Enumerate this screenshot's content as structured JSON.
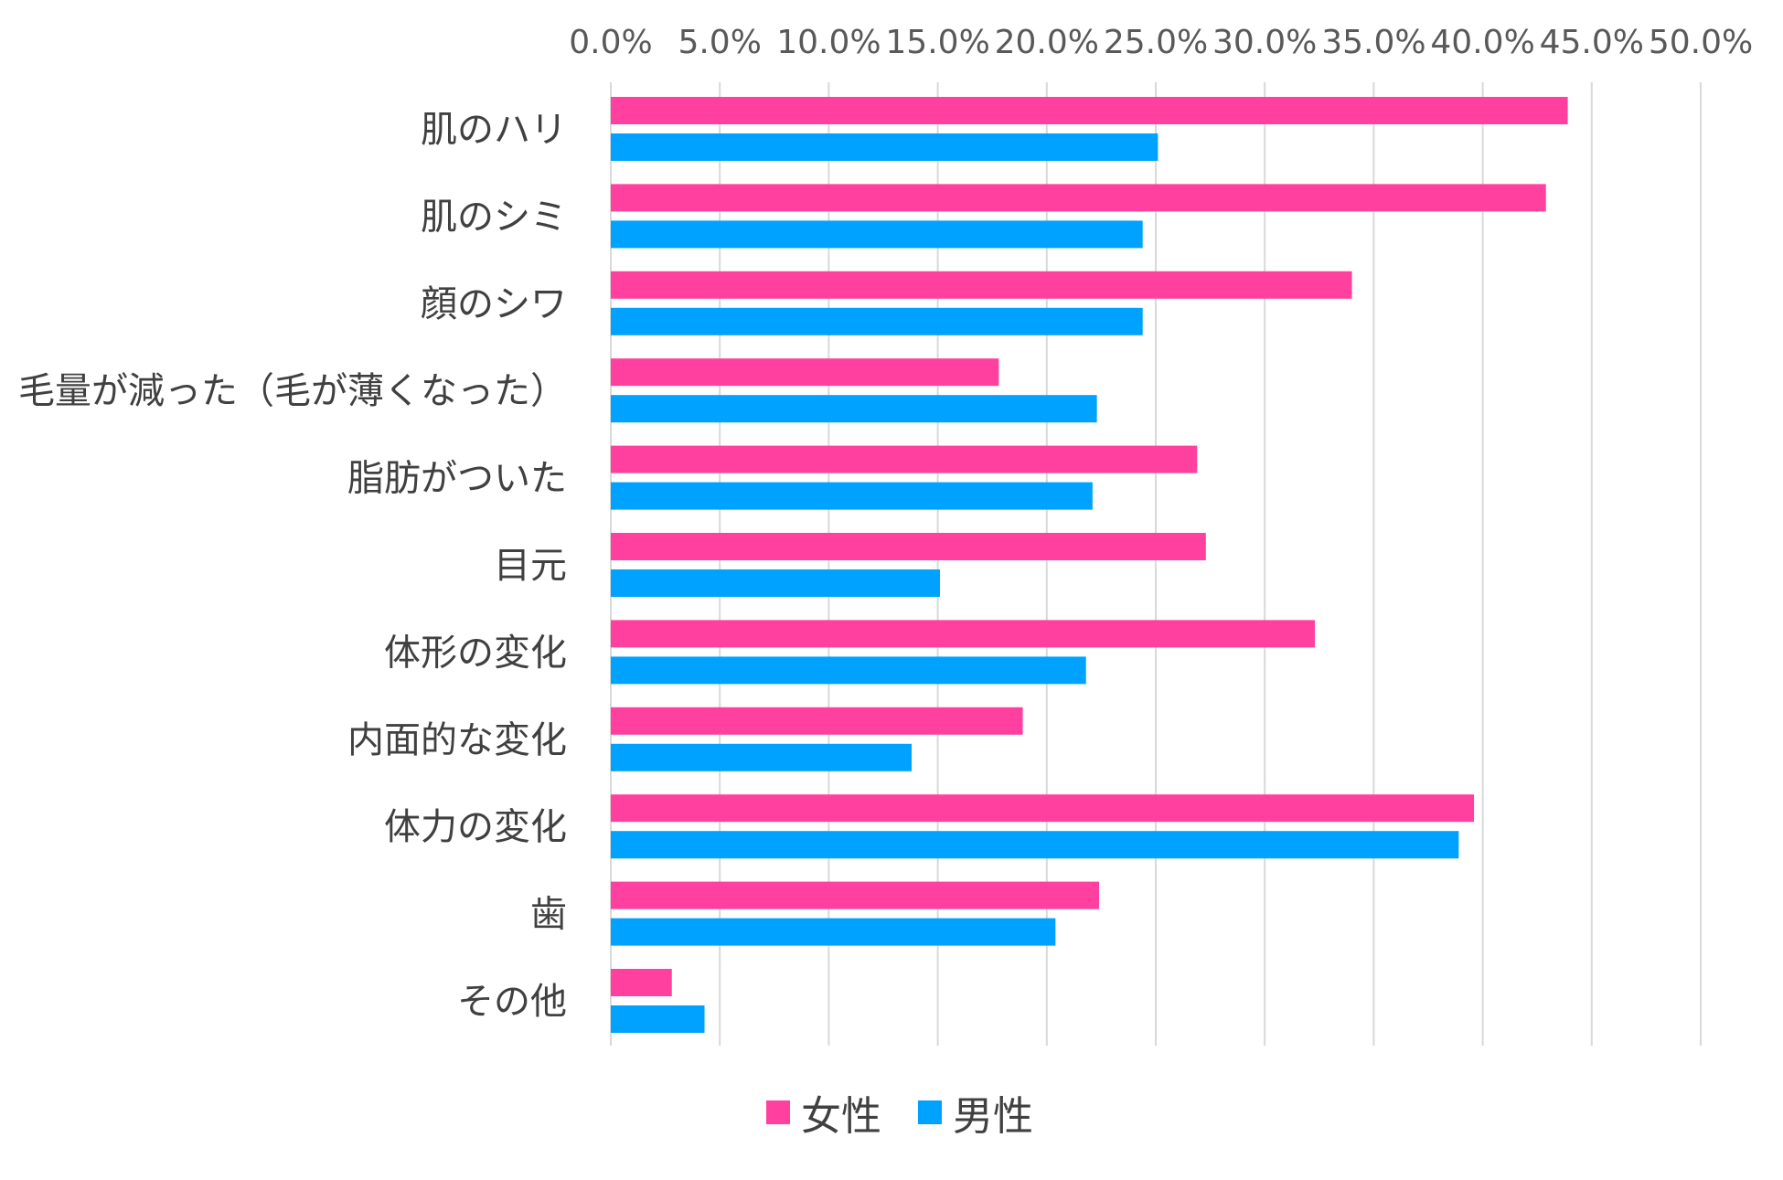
{
  "chart_data": {
    "type": "bar",
    "orientation": "horizontal",
    "title": "",
    "xlabel": "",
    "ylabel": "",
    "xlim": [
      0,
      50
    ],
    "x_ticks": [
      "0.0%",
      "5.0%",
      "10.0%",
      "15.0%",
      "20.0%",
      "25.0%",
      "30.0%",
      "35.0%",
      "40.0%",
      "45.0%",
      "50.0%"
    ],
    "categories": [
      "肌のハリ",
      "肌のシミ",
      "顔のシワ",
      "毛量が減った（毛が薄くなった）",
      "脂肪がついた",
      "目元",
      "体形の変化",
      "内面的な変化",
      "体力の変化",
      "歯",
      "その他"
    ],
    "series": [
      {
        "name": "女性",
        "color": "#ff409e",
        "values": [
          43.9,
          42.9,
          34.0,
          17.8,
          26.9,
          27.3,
          32.3,
          18.9,
          39.6,
          22.4,
          2.8
        ]
      },
      {
        "name": "男性",
        "color": "#00a2ff",
        "values": [
          25.1,
          24.4,
          24.4,
          22.3,
          22.1,
          15.1,
          21.8,
          13.8,
          38.9,
          20.4,
          4.3
        ]
      }
    ],
    "grid": true,
    "legend_position": "bottom"
  }
}
